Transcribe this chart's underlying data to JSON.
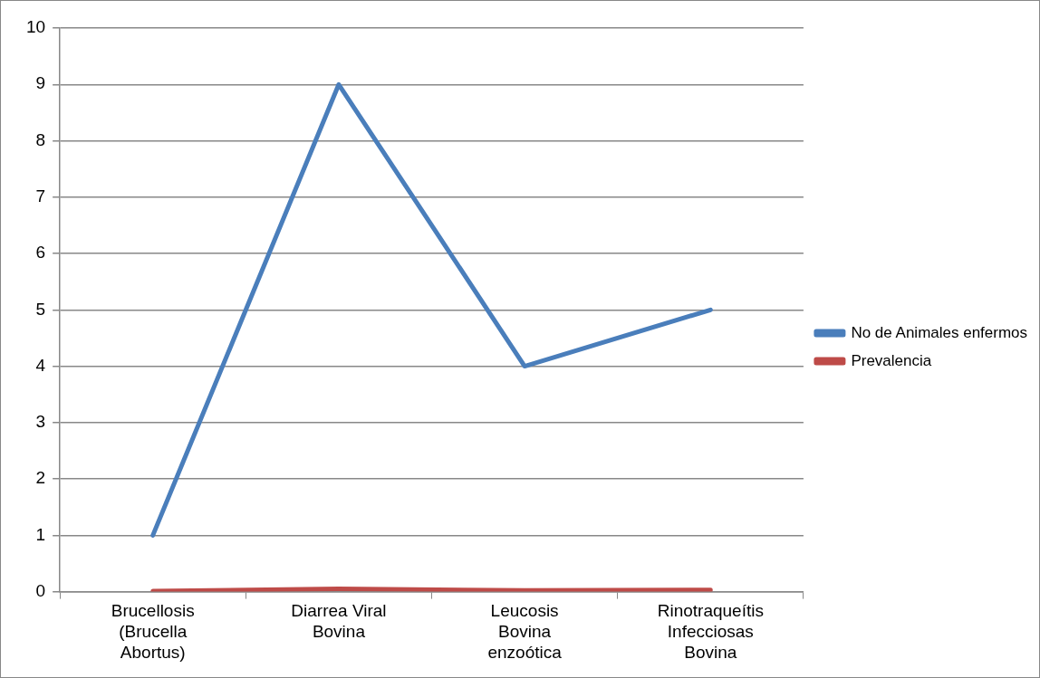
{
  "chart_data": {
    "type": "line",
    "categories": [
      "Brucellosis (Brucella Abortus)",
      "Diarrea Viral Bovina",
      "Leucosis Bovina enzoótica",
      "Rinotraqueítis Infecciosas Bovina"
    ],
    "series": [
      {
        "name": "No de Animales enfermos",
        "color": "#4a7ebb",
        "values": [
          1,
          9,
          4,
          5
        ]
      },
      {
        "name": "Prevalencia",
        "color": "#be4b48",
        "values": [
          0.01,
          0.05,
          0.02,
          0.03
        ]
      }
    ],
    "ylim": [
      0,
      10
    ],
    "yticks": [
      0,
      1,
      2,
      3,
      4,
      5,
      6,
      7,
      8,
      9,
      10
    ],
    "grid": "y",
    "legend": "right",
    "marker": "none",
    "line_style": "solid"
  }
}
